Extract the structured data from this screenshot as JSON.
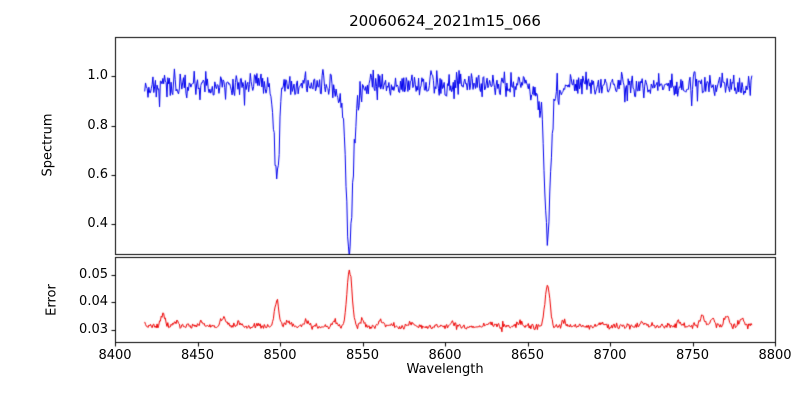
{
  "figure": {
    "title": "20060624_2021m15_066",
    "xlabel": "Wavelength",
    "ylabel_top": "Spectrum",
    "ylabel_bottom": "Error"
  },
  "chart_data": [
    {
      "type": "line",
      "name": "spectrum",
      "color": "#0000ee",
      "x_start": 8418,
      "x_end": 8786,
      "x_step": 0.5,
      "xlim": [
        8400,
        8800
      ],
      "ylim": [
        0.28,
        1.16
      ],
      "yticks": [
        {
          "v": 0.4,
          "label": "0.4"
        },
        {
          "v": 0.6,
          "label": "0.6"
        },
        {
          "v": 0.8,
          "label": "0.8"
        },
        {
          "v": 1.0,
          "label": "1.0"
        }
      ],
      "baseline": 0.965,
      "noise_sigma": 0.027,
      "seed": 42,
      "absorption_lines": [
        {
          "center": 8498.0,
          "depth": 0.385,
          "sigma": 1.5,
          "min_value": 0.58
        },
        {
          "center": 8542.1,
          "depth": 0.625,
          "sigma": 2.0,
          "min_value": 0.33
        },
        {
          "center": 8542.1,
          "depth": 0.05,
          "sigma": 6.0
        },
        {
          "center": 8662.1,
          "depth": 0.55,
          "sigma": 1.8,
          "min_value": 0.41
        },
        {
          "center": 8662.1,
          "depth": 0.04,
          "sigma": 5.0
        }
      ]
    },
    {
      "type": "line",
      "name": "error",
      "color": "#ee0000",
      "x_start": 8418,
      "x_end": 8786,
      "x_step": 0.5,
      "xlim": [
        8400,
        8800
      ],
      "ylim": [
        0.0255,
        0.0565
      ],
      "yticks": [
        {
          "v": 0.03,
          "label": "0.03"
        },
        {
          "v": 0.04,
          "label": "0.04"
        },
        {
          "v": 0.05,
          "label": "0.05"
        }
      ],
      "xticks": [
        {
          "v": 8400,
          "label": "8400"
        },
        {
          "v": 8450,
          "label": "8450"
        },
        {
          "v": 8500,
          "label": "8500"
        },
        {
          "v": 8550,
          "label": "8550"
        },
        {
          "v": 8600,
          "label": "8600"
        },
        {
          "v": 8650,
          "label": "8650"
        },
        {
          "v": 8700,
          "label": "8700"
        },
        {
          "v": 8750,
          "label": "8750"
        },
        {
          "v": 8800,
          "label": "8800"
        }
      ],
      "baseline": 0.0313,
      "noise_sigma": 0.00055,
      "seed": 7,
      "peaks": [
        {
          "center": 8498.0,
          "height": 0.0092,
          "sigma": 1.3,
          "max_value": 0.041
        },
        {
          "center": 8542.1,
          "height": 0.0205,
          "sigma": 1.5,
          "max_value": 0.052
        },
        {
          "center": 8662.1,
          "height": 0.015,
          "sigma": 1.5,
          "max_value": 0.047
        },
        {
          "center": 8429,
          "height": 0.0042,
          "sigma": 1.2
        },
        {
          "center": 8437,
          "height": 0.0015,
          "sigma": 1.5
        },
        {
          "center": 8452,
          "height": 0.0018,
          "sigma": 1.2
        },
        {
          "center": 8466,
          "height": 0.003,
          "sigma": 1.4
        },
        {
          "center": 8475,
          "height": 0.0015,
          "sigma": 1.2
        },
        {
          "center": 8505,
          "height": 0.0018,
          "sigma": 1.5
        },
        {
          "center": 8516,
          "height": 0.0022,
          "sigma": 1.2
        },
        {
          "center": 8533,
          "height": 0.0018,
          "sigma": 1.2
        },
        {
          "center": 8550,
          "height": 0.0025,
          "sigma": 1.3
        },
        {
          "center": 8561,
          "height": 0.0015,
          "sigma": 1.5
        },
        {
          "center": 8580,
          "height": 0.0012,
          "sigma": 1.5
        },
        {
          "center": 8605,
          "height": 0.0015,
          "sigma": 1.3
        },
        {
          "center": 8627,
          "height": 0.0012,
          "sigma": 1.3
        },
        {
          "center": 8645,
          "height": 0.0015,
          "sigma": 1.3
        },
        {
          "center": 8672,
          "height": 0.002,
          "sigma": 1.3
        },
        {
          "center": 8695,
          "height": 0.0012,
          "sigma": 1.5
        },
        {
          "center": 8720,
          "height": 0.0012,
          "sigma": 1.5
        },
        {
          "center": 8742,
          "height": 0.0018,
          "sigma": 1.3
        },
        {
          "center": 8756,
          "height": 0.004,
          "sigma": 1.3
        },
        {
          "center": 8762,
          "height": 0.0025,
          "sigma": 1.2
        },
        {
          "center": 8771,
          "height": 0.0038,
          "sigma": 1.3
        },
        {
          "center": 8780,
          "height": 0.003,
          "sigma": 1.2
        }
      ]
    }
  ]
}
